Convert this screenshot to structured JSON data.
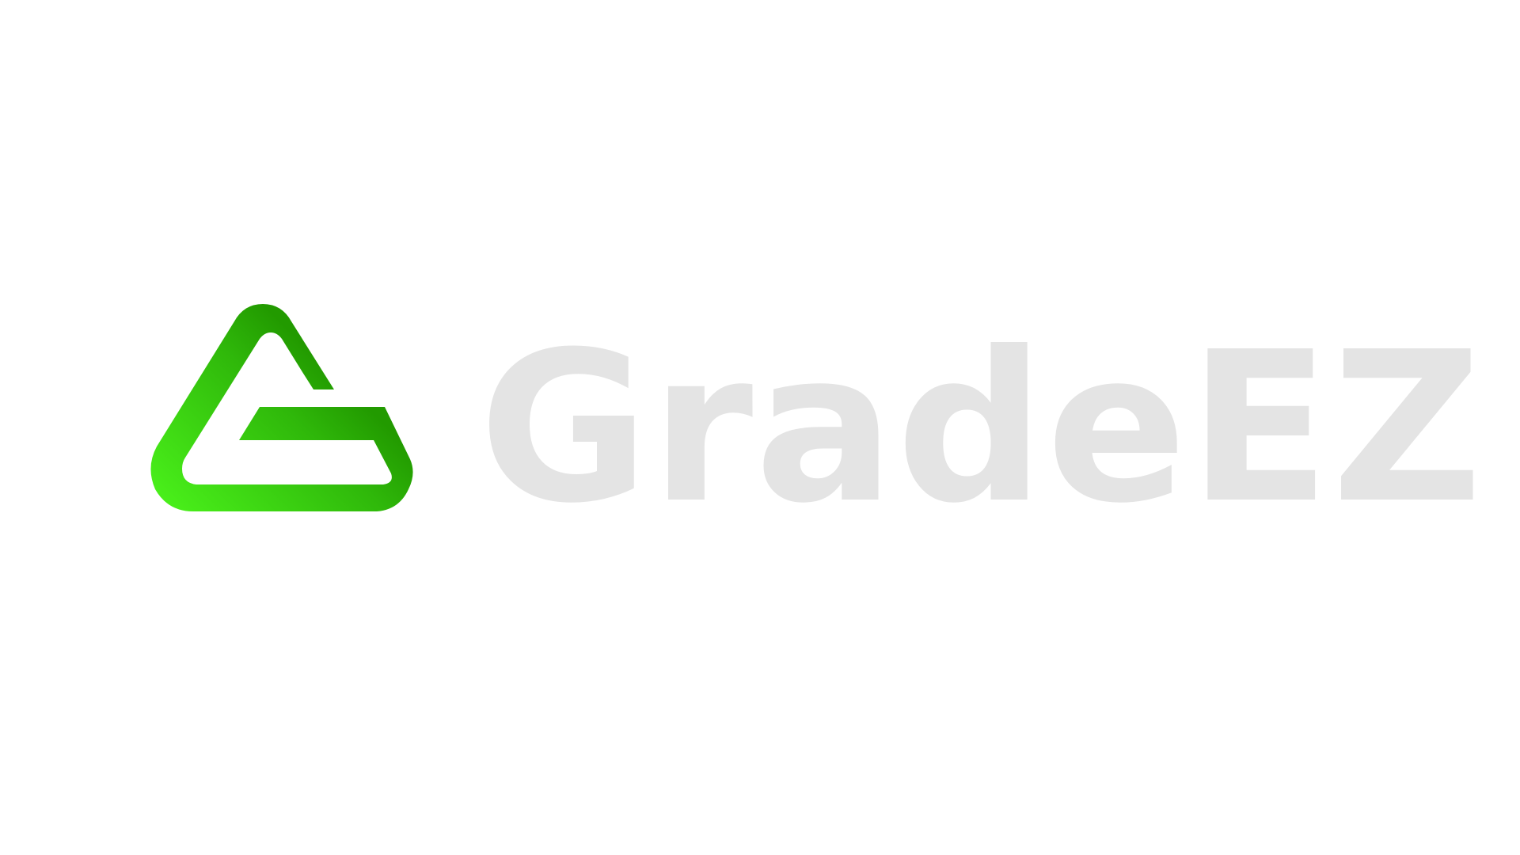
{
  "brand": {
    "name": "GradeEZ",
    "logo_icon": "stylized-g-triangle-icon",
    "colors": {
      "wordmark": "#e4e4e4",
      "mark_gradient_start": "#4cf51c",
      "mark_gradient_end": "#229a00",
      "background": "#ffffff"
    }
  }
}
